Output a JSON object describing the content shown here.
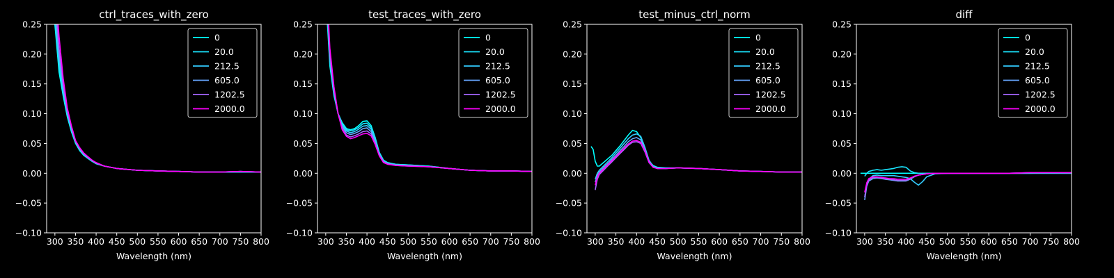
{
  "figure": {
    "background": "#000000",
    "foreground": "#ffffff"
  },
  "xlabel": "Wavelength (nm)",
  "legend_labels": [
    "0",
    "20.0",
    "212.5",
    "605.0",
    "1202.5",
    "2000.0"
  ],
  "series_colors": [
    "#00ffff",
    "#19e6ff",
    "#33ccff",
    "#66a6ff",
    "#a666ff",
    "#ff00ff"
  ],
  "chart_data": [
    {
      "type": "line",
      "title": "ctrl_traces_with_zero",
      "xlabel": "Wavelength (nm)",
      "ylabel": "",
      "xlim": [
        280,
        800
      ],
      "ylim": [
        -0.1,
        0.25
      ],
      "xticks": [
        300,
        350,
        400,
        450,
        500,
        550,
        600,
        650,
        700,
        750,
        800
      ],
      "yticks": [
        -0.1,
        -0.05,
        0.0,
        0.05,
        0.1,
        0.15,
        0.2,
        0.25
      ],
      "grid": false,
      "legend": "top-right",
      "x": [
        300,
        310,
        320,
        330,
        340,
        350,
        360,
        370,
        380,
        390,
        400,
        420,
        450,
        500,
        550,
        600,
        650,
        700,
        750,
        800
      ],
      "series": [
        {
          "name": "0",
          "values": [
            0.25,
            0.17,
            0.13,
            0.095,
            0.07,
            0.05,
            0.038,
            0.03,
            0.025,
            0.02,
            0.016,
            0.012,
            0.008,
            0.005,
            0.004,
            0.003,
            0.002,
            0.002,
            0.002,
            0.002
          ]
        },
        {
          "name": "20.0",
          "values": [
            0.26,
            0.18,
            0.135,
            0.098,
            0.072,
            0.051,
            0.039,
            0.031,
            0.025,
            0.02,
            0.016,
            0.012,
            0.008,
            0.005,
            0.004,
            0.003,
            0.002,
            0.002,
            0.002,
            0.002
          ]
        },
        {
          "name": "212.5",
          "values": [
            0.27,
            0.19,
            0.14,
            0.1,
            0.074,
            0.052,
            0.04,
            0.031,
            0.026,
            0.021,
            0.017,
            0.012,
            0.008,
            0.005,
            0.004,
            0.003,
            0.002,
            0.002,
            0.003,
            0.002
          ]
        },
        {
          "name": "605.0",
          "values": [
            0.28,
            0.2,
            0.145,
            0.103,
            0.076,
            0.053,
            0.041,
            0.032,
            0.026,
            0.021,
            0.017,
            0.012,
            0.008,
            0.005,
            0.004,
            0.003,
            0.002,
            0.002,
            0.003,
            0.002
          ]
        },
        {
          "name": "1202.5",
          "values": [
            0.3,
            0.21,
            0.15,
            0.106,
            0.078,
            0.054,
            0.042,
            0.033,
            0.027,
            0.022,
            0.017,
            0.012,
            0.008,
            0.005,
            0.004,
            0.003,
            0.002,
            0.002,
            0.003,
            0.002
          ]
        },
        {
          "name": "2000.0",
          "values": [
            0.32,
            0.23,
            0.16,
            0.11,
            0.08,
            0.055,
            0.043,
            0.034,
            0.028,
            0.022,
            0.018,
            0.012,
            0.008,
            0.005,
            0.004,
            0.003,
            0.002,
            0.002,
            0.003,
            0.002
          ]
        }
      ]
    },
    {
      "type": "line",
      "title": "test_traces_with_zero",
      "xlabel": "Wavelength (nm)",
      "ylabel": "",
      "xlim": [
        280,
        800
      ],
      "ylim": [
        -0.1,
        0.25
      ],
      "xticks": [
        300,
        350,
        400,
        450,
        500,
        550,
        600,
        650,
        700,
        750,
        800
      ],
      "yticks": [
        -0.1,
        -0.05,
        0.0,
        0.05,
        0.1,
        0.15,
        0.2,
        0.25
      ],
      "grid": false,
      "legend": "top-right",
      "x": [
        300,
        310,
        320,
        330,
        340,
        350,
        360,
        370,
        380,
        390,
        400,
        410,
        420,
        430,
        440,
        450,
        470,
        500,
        550,
        600,
        650,
        700,
        750,
        800
      ],
      "series": [
        {
          "name": "0",
          "values": [
            0.3,
            0.18,
            0.13,
            0.1,
            0.085,
            0.075,
            0.073,
            0.075,
            0.08,
            0.087,
            0.088,
            0.08,
            0.06,
            0.035,
            0.022,
            0.018,
            0.015,
            0.014,
            0.012,
            0.008,
            0.005,
            0.004,
            0.004,
            0.003
          ]
        },
        {
          "name": "20.0",
          "values": [
            0.31,
            0.185,
            0.133,
            0.1,
            0.083,
            0.073,
            0.071,
            0.073,
            0.077,
            0.083,
            0.084,
            0.077,
            0.058,
            0.034,
            0.021,
            0.017,
            0.015,
            0.014,
            0.012,
            0.008,
            0.005,
            0.004,
            0.004,
            0.003
          ]
        },
        {
          "name": "212.5",
          "values": [
            0.32,
            0.19,
            0.135,
            0.1,
            0.081,
            0.071,
            0.068,
            0.07,
            0.074,
            0.079,
            0.08,
            0.074,
            0.056,
            0.033,
            0.021,
            0.017,
            0.014,
            0.013,
            0.011,
            0.008,
            0.005,
            0.004,
            0.004,
            0.003
          ]
        },
        {
          "name": "605.0",
          "values": [
            0.33,
            0.195,
            0.137,
            0.1,
            0.078,
            0.068,
            0.065,
            0.067,
            0.07,
            0.075,
            0.076,
            0.07,
            0.053,
            0.031,
            0.02,
            0.016,
            0.014,
            0.013,
            0.011,
            0.008,
            0.005,
            0.004,
            0.004,
            0.003
          ]
        },
        {
          "name": "1202.5",
          "values": [
            0.34,
            0.2,
            0.14,
            0.1,
            0.075,
            0.064,
            0.061,
            0.063,
            0.066,
            0.07,
            0.071,
            0.066,
            0.05,
            0.03,
            0.019,
            0.016,
            0.013,
            0.012,
            0.011,
            0.008,
            0.005,
            0.004,
            0.004,
            0.003
          ]
        },
        {
          "name": "2000.0",
          "values": [
            0.35,
            0.21,
            0.145,
            0.1,
            0.073,
            0.062,
            0.058,
            0.06,
            0.063,
            0.066,
            0.067,
            0.063,
            0.048,
            0.029,
            0.018,
            0.015,
            0.013,
            0.012,
            0.011,
            0.008,
            0.005,
            0.004,
            0.004,
            0.003
          ]
        }
      ]
    },
    {
      "type": "line",
      "title": "test_minus_ctrl_norm",
      "xlabel": "Wavelength (nm)",
      "ylabel": "",
      "xlim": [
        280,
        800
      ],
      "ylim": [
        -0.1,
        0.25
      ],
      "xticks": [
        300,
        350,
        400,
        450,
        500,
        550,
        600,
        650,
        700,
        750,
        800
      ],
      "yticks": [
        -0.1,
        -0.05,
        0.0,
        0.05,
        0.1,
        0.15,
        0.2,
        0.25
      ],
      "grid": false,
      "legend": "top-right",
      "x": [
        290,
        295,
        300,
        305,
        310,
        320,
        330,
        340,
        350,
        360,
        370,
        380,
        390,
        400,
        410,
        420,
        430,
        440,
        450,
        470,
        500,
        550,
        600,
        650,
        700,
        750,
        800
      ],
      "series": [
        {
          "name": "0",
          "values": [
            0.045,
            0.04,
            0.02,
            0.012,
            0.012,
            0.018,
            0.024,
            0.03,
            0.038,
            0.046,
            0.055,
            0.064,
            0.072,
            0.07,
            0.06,
            0.04,
            0.02,
            0.013,
            0.01,
            0.009,
            0.009,
            0.008,
            0.006,
            0.004,
            0.003,
            0.002,
            0.002
          ]
        },
        {
          "name": "20.0",
          "values": null
        },
        {
          "name": "212.5",
          "values": [
            null,
            null,
            -0.01,
            0.0,
            0.005,
            0.012,
            0.019,
            0.026,
            0.034,
            0.042,
            0.05,
            0.058,
            0.064,
            0.066,
            0.062,
            0.044,
            0.022,
            0.012,
            0.009,
            0.008,
            0.009,
            0.008,
            0.006,
            0.004,
            0.003,
            0.002,
            0.002
          ]
        },
        {
          "name": "605.0",
          "values": [
            null,
            null,
            -0.015,
            -0.004,
            0.002,
            0.009,
            0.016,
            0.023,
            0.03,
            0.038,
            0.045,
            0.053,
            0.058,
            0.06,
            0.056,
            0.04,
            0.02,
            0.011,
            0.008,
            0.008,
            0.009,
            0.008,
            0.006,
            0.004,
            0.003,
            0.002,
            0.002
          ]
        },
        {
          "name": "1202.5",
          "values": [
            null,
            null,
            -0.028,
            -0.01,
            -0.002,
            0.005,
            0.012,
            0.019,
            0.026,
            0.033,
            0.04,
            0.047,
            0.052,
            0.053,
            0.05,
            0.036,
            0.018,
            0.01,
            0.008,
            0.008,
            0.009,
            0.008,
            0.006,
            0.004,
            0.003,
            0.002,
            0.002
          ]
        },
        {
          "name": "2000.0",
          "values": [
            null,
            null,
            -0.02,
            -0.006,
            0.0,
            0.007,
            0.014,
            0.021,
            0.028,
            0.035,
            0.042,
            0.049,
            0.054,
            0.055,
            0.052,
            0.038,
            0.019,
            0.01,
            0.008,
            0.008,
            0.009,
            0.008,
            0.006,
            0.004,
            0.003,
            0.002,
            0.002
          ]
        }
      ]
    },
    {
      "type": "line",
      "title": "diff",
      "xlabel": "Wavelength (nm)",
      "ylabel": "",
      "xlim": [
        280,
        800
      ],
      "ylim": [
        -0.1,
        0.25
      ],
      "xticks": [
        300,
        350,
        400,
        450,
        500,
        550,
        600,
        650,
        700,
        750,
        800
      ],
      "yticks": [
        -0.1,
        -0.05,
        0.0,
        0.05,
        0.1,
        0.15,
        0.2,
        0.25
      ],
      "grid": false,
      "legend": "top-right",
      "x": [
        290,
        300,
        305,
        310,
        320,
        330,
        340,
        350,
        360,
        370,
        380,
        390,
        400,
        410,
        420,
        430,
        440,
        450,
        470,
        500,
        550,
        600,
        650,
        700,
        750,
        800
      ],
      "series": [
        {
          "name": "0",
          "values": [
            0.0,
            0.0,
            0.0,
            0.0,
            0.0,
            0.0,
            0.0,
            0.0,
            0.0,
            0.0,
            0.0,
            0.0,
            0.0,
            0.0,
            0.0,
            0.0,
            0.0,
            0.0,
            0.0,
            0.0,
            0.0,
            0.0,
            0.0,
            0.0,
            0.0,
            0.0
          ]
        },
        {
          "name": "20.0",
          "values": [
            null,
            -0.005,
            0.0,
            0.003,
            0.005,
            0.006,
            0.005,
            0.006,
            0.007,
            0.008,
            0.01,
            0.011,
            0.01,
            0.004,
            0.001,
            0.0,
            0.0,
            0.0,
            0.0,
            0.0,
            0.0,
            0.0,
            0.0,
            0.0,
            0.0,
            0.0
          ]
        },
        {
          "name": "212.5",
          "values": [
            null,
            -0.04,
            -0.02,
            -0.01,
            -0.004,
            -0.003,
            -0.004,
            -0.004,
            -0.004,
            -0.004,
            -0.005,
            -0.006,
            -0.007,
            -0.009,
            -0.015,
            -0.02,
            -0.014,
            -0.006,
            -0.001,
            0.0,
            0.0,
            0.0,
            0.0,
            0.0,
            0.001,
            0.0
          ]
        },
        {
          "name": "605.0",
          "values": [
            null,
            -0.045,
            -0.022,
            -0.013,
            -0.009,
            -0.008,
            -0.009,
            -0.01,
            -0.011,
            -0.012,
            -0.013,
            -0.013,
            -0.013,
            -0.01,
            -0.006,
            -0.003,
            -0.002,
            -0.001,
            0.0,
            0.0,
            0.0,
            0.0,
            0.0,
            0.001,
            0.001,
            0.001
          ]
        },
        {
          "name": "1202.5",
          "values": [
            null,
            -0.04,
            -0.02,
            -0.011,
            -0.007,
            -0.007,
            -0.008,
            -0.009,
            -0.01,
            -0.011,
            -0.012,
            -0.012,
            -0.012,
            -0.009,
            -0.005,
            -0.003,
            -0.002,
            -0.001,
            0.0,
            0.0,
            0.0,
            0.0,
            0.0,
            0.001,
            0.001,
            0.001
          ]
        },
        {
          "name": "2000.0",
          "values": [
            null,
            -0.032,
            -0.016,
            -0.009,
            -0.006,
            -0.006,
            -0.007,
            -0.008,
            -0.009,
            -0.009,
            -0.01,
            -0.01,
            -0.01,
            -0.008,
            -0.005,
            -0.003,
            -0.002,
            -0.001,
            0.0,
            0.0,
            0.0,
            0.0,
            0.0,
            0.001,
            0.001,
            0.001
          ]
        }
      ]
    }
  ]
}
